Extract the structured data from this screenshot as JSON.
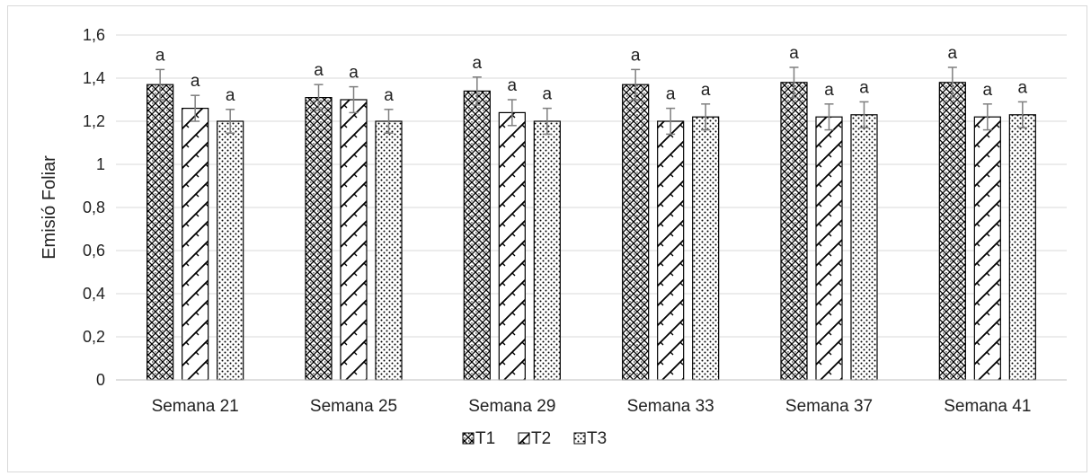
{
  "chart_data": {
    "type": "bar",
    "title": "",
    "xlabel": "",
    "ylabel": "Emisió Foliar",
    "ylim": [
      0,
      1.6
    ],
    "yticks": [
      "0",
      "0,2",
      "0,4",
      "0,6",
      "0,8",
      "1",
      "1,2",
      "1,4",
      "1,6"
    ],
    "grid": true,
    "legend_position": "bottom",
    "categories": [
      "Semana 21",
      "Semana 25",
      "Semana 29",
      "Semana 33",
      "Semana 37",
      "Semana 41"
    ],
    "series": [
      {
        "name": "T1",
        "pattern": "crosshatch",
        "values": [
          1.37,
          1.31,
          1.34,
          1.37,
          1.38,
          1.38
        ],
        "errors": [
          0.07,
          0.06,
          0.065,
          0.07,
          0.07,
          0.07
        ],
        "labels": [
          "a",
          "a",
          "a",
          "a",
          "a",
          "a"
        ]
      },
      {
        "name": "T2",
        "pattern": "zigzag",
        "values": [
          1.26,
          1.3,
          1.24,
          1.2,
          1.22,
          1.22
        ],
        "errors": [
          0.06,
          0.06,
          0.06,
          0.06,
          0.06,
          0.06
        ],
        "labels": [
          "a",
          "a",
          "a",
          "a",
          "a",
          "a"
        ]
      },
      {
        "name": "T3",
        "pattern": "dots",
        "values": [
          1.2,
          1.2,
          1.2,
          1.22,
          1.23,
          1.23
        ],
        "errors": [
          0.055,
          0.055,
          0.06,
          0.06,
          0.06,
          0.06
        ],
        "labels": [
          "a",
          "a",
          "a",
          "a",
          "a",
          "a"
        ]
      }
    ],
    "colors": {
      "bar_stroke": "#000000",
      "grid": "#d9d9d9",
      "error_bar": "#7f7f7f",
      "text": "#222222"
    }
  }
}
